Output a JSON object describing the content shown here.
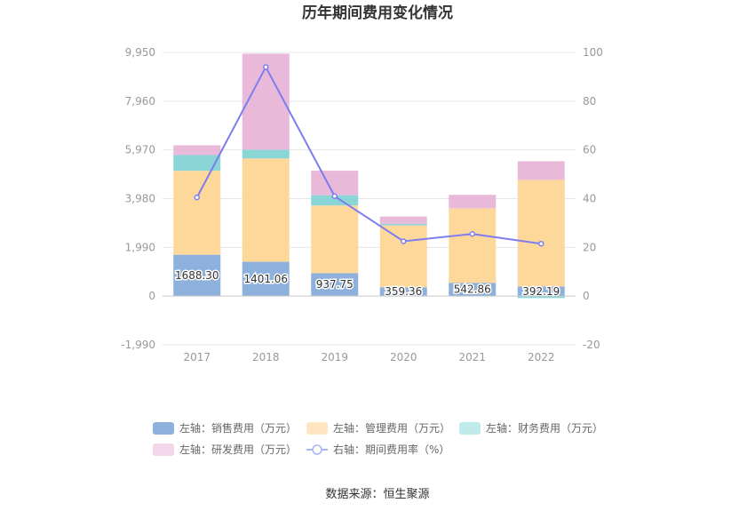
{
  "chart_data": {
    "type": "bar",
    "title": "历年期间费用变化情况",
    "source": "数据来源：恒生聚源",
    "categories": [
      "2017",
      "2018",
      "2019",
      "2020",
      "2021",
      "2022"
    ],
    "left_axis": {
      "ylim": [
        -1990,
        9950
      ],
      "ticks": [
        "9,950",
        "7,960",
        "5,970",
        "3,980",
        "1,990",
        "0",
        "-1,990"
      ],
      "tick_values": [
        9950,
        7960,
        5970,
        3980,
        1990,
        0,
        -1990
      ]
    },
    "right_axis": {
      "ylim": [
        -20,
        100
      ],
      "ticks": [
        "100",
        "80",
        "60",
        "40",
        "20",
        "0",
        "-20"
      ],
      "tick_values": [
        100,
        80,
        60,
        40,
        20,
        0,
        -20
      ]
    },
    "series": [
      {
        "name": "左轴：销售费用（万元）",
        "kind": "bar",
        "color": "#8eb0dc",
        "values": [
          1688.3,
          1401.06,
          937.75,
          359.36,
          542.86,
          392.19
        ],
        "labels": [
          "1688.30",
          "1401.06",
          "937.75",
          "359.36",
          "542.86",
          "392.19"
        ]
      },
      {
        "name": "左轴：管理费用（万元）",
        "kind": "bar",
        "color": "#fed89a",
        "values": [
          3430,
          4219,
          2763,
          2530,
          3043,
          4354
        ]
      },
      {
        "name": "左轴：财务费用（万元）",
        "kind": "bar",
        "color": "#8ad6d6",
        "values": [
          640,
          360,
          420,
          60,
          0,
          -80
        ]
      },
      {
        "name": "左轴：研发费用（万元）",
        "kind": "bar",
        "color": "#e9b9da",
        "values": [
          400,
          3920,
          1000,
          300,
          550,
          760
        ]
      },
      {
        "name": "右轴：期间费用率（%）",
        "kind": "line",
        "color": "#7d7df0",
        "values": [
          40.5,
          94.0,
          41.0,
          22.5,
          25.5,
          21.5
        ]
      }
    ],
    "legend": {
      "placement": "bottom"
    },
    "legend_swatch_colors": [
      "#8eb0dc",
      "#ffe5c0",
      "#bfeaea",
      "#f3d6ea",
      "#aab4f5"
    ]
  }
}
